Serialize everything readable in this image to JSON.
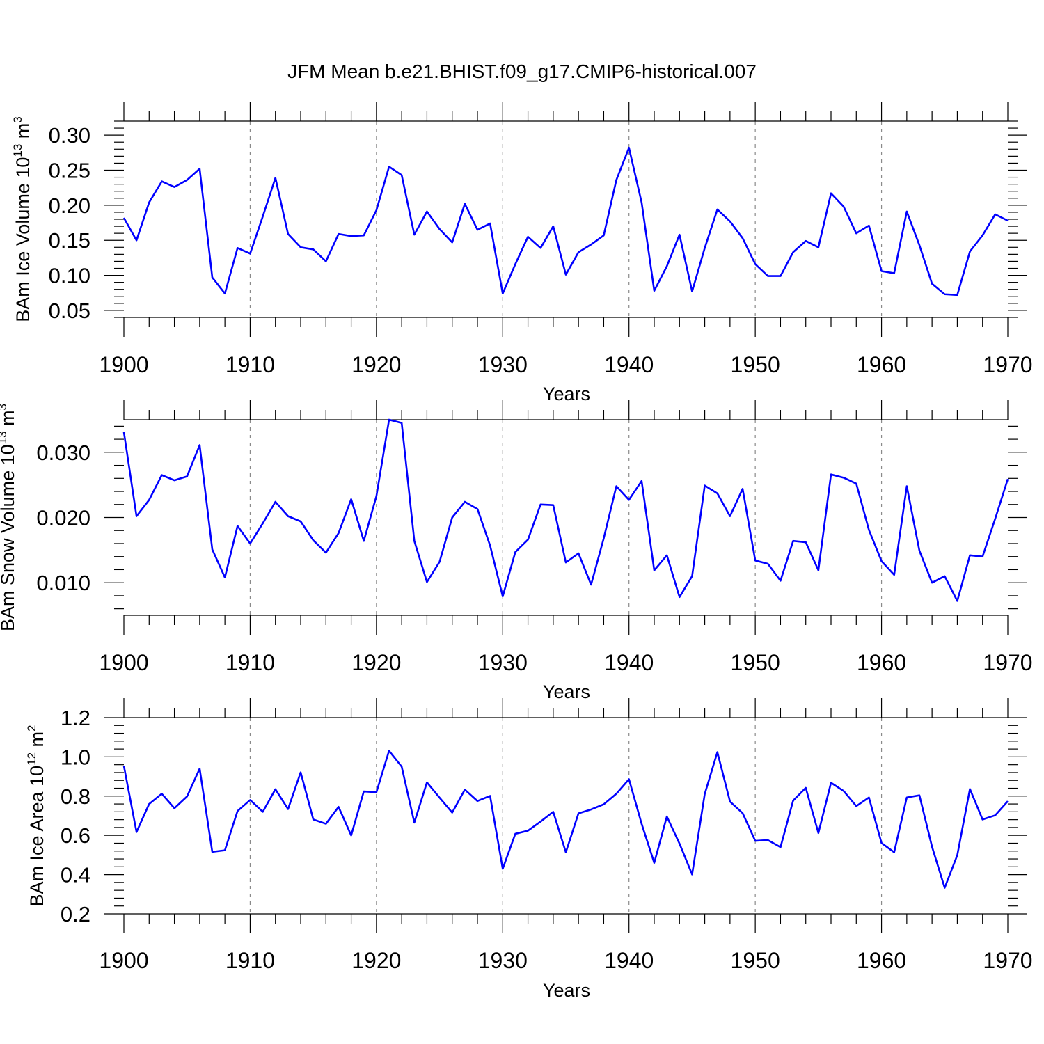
{
  "title": "JFM Mean b.e21.BHIST.f09_g17.CMIP6-historical.007",
  "line_color": "#0000ff",
  "chart_data": [
    {
      "type": "line",
      "ylabel": "BAm Ice Volume 10",
      "ylabel_exp": "13",
      "ylabel_unit": " m",
      "ylabel_unit_exp": "3",
      "xlabel": "Years",
      "xlim": [
        1900,
        1970
      ],
      "ylim": [
        0.04,
        0.32
      ],
      "x_ticks": [
        1900,
        1910,
        1920,
        1930,
        1940,
        1950,
        1960,
        1970
      ],
      "x_tick_labels": [
        "1900",
        "1910",
        "1920",
        "1930",
        "1940",
        "1950",
        "1960",
        "1970"
      ],
      "y_ticks": [
        0.05,
        0.1,
        0.15,
        0.2,
        0.25,
        0.3
      ],
      "y_tick_labels": [
        "0.05",
        "0.10",
        "0.15",
        "0.20",
        "0.25",
        "0.30"
      ],
      "y_minor_step": 0.01,
      "grid": "vertical dashed at decades",
      "x_start": 1900,
      "series": [
        {
          "values": [
            0.182,
            0.15,
            0.204,
            0.234,
            0.226,
            0.236,
            0.252,
            0.097,
            0.074,
            0.139,
            0.131,
            0.184,
            0.239,
            0.159,
            0.14,
            0.137,
            0.12,
            0.159,
            0.156,
            0.157,
            0.193,
            0.255,
            0.243,
            0.158,
            0.191,
            0.166,
            0.147,
            0.202,
            0.165,
            0.174,
            0.074,
            0.116,
            0.155,
            0.139,
            0.17,
            0.101,
            0.133,
            0.144,
            0.157,
            0.236,
            0.282,
            0.204,
            0.078,
            0.113,
            0.158,
            0.077,
            0.139,
            0.194,
            0.177,
            0.153,
            0.116,
            0.099,
            0.099,
            0.133,
            0.149,
            0.14,
            0.217,
            0.198,
            0.16,
            0.171,
            0.106,
            0.103,
            0.191,
            0.143,
            0.088,
            0.073,
            0.072,
            0.134,
            0.157,
            0.187,
            0.178
          ]
        }
      ]
    },
    {
      "type": "line",
      "ylabel": "BAm Snow Volume 10",
      "ylabel_exp": "13",
      "ylabel_unit": " m",
      "ylabel_unit_exp": "3",
      "xlabel": "Years",
      "xlim": [
        1900,
        1970
      ],
      "ylim": [
        0.005,
        0.035
      ],
      "x_ticks": [
        1900,
        1910,
        1920,
        1930,
        1940,
        1950,
        1960,
        1970
      ],
      "x_tick_labels": [
        "1900",
        "1910",
        "1920",
        "1930",
        "1940",
        "1950",
        "1960",
        "1970"
      ],
      "y_ticks": [
        0.01,
        0.02,
        0.03
      ],
      "y_tick_labels": [
        "0.010",
        "0.020",
        "0.030"
      ],
      "y_minor_step": 0.002,
      "grid": "vertical dashed at decades",
      "x_start": 1900,
      "series": [
        {
          "values": [
            0.0331,
            0.0202,
            0.0227,
            0.0265,
            0.0257,
            0.0263,
            0.0311,
            0.0151,
            0.0108,
            0.0187,
            0.016,
            0.0191,
            0.0224,
            0.0202,
            0.0194,
            0.0165,
            0.0146,
            0.0176,
            0.0228,
            0.0164,
            0.0233,
            0.035,
            0.0345,
            0.0164,
            0.0101,
            0.0132,
            0.02,
            0.0224,
            0.0213,
            0.0157,
            0.0079,
            0.0147,
            0.0166,
            0.022,
            0.0219,
            0.0131,
            0.0145,
            0.0097,
            0.0168,
            0.0248,
            0.0227,
            0.0256,
            0.0119,
            0.0142,
            0.0078,
            0.011,
            0.0249,
            0.0237,
            0.0202,
            0.0244,
            0.0134,
            0.0129,
            0.0103,
            0.0164,
            0.0162,
            0.0119,
            0.0266,
            0.0261,
            0.0252,
            0.0181,
            0.0133,
            0.0112,
            0.0248,
            0.0149,
            0.01,
            0.011,
            0.0072,
            0.0142,
            0.014,
            0.0198,
            0.0259
          ]
        }
      ]
    },
    {
      "type": "line",
      "ylabel": "BAm Ice Area 10",
      "ylabel_exp": "12",
      "ylabel_unit": " m",
      "ylabel_unit_exp": "2",
      "xlabel": "Years",
      "xlim": [
        1900,
        1970
      ],
      "ylim": [
        0.2,
        1.2
      ],
      "x_ticks": [
        1900,
        1910,
        1920,
        1930,
        1940,
        1950,
        1960,
        1970
      ],
      "x_tick_labels": [
        "1900",
        "1910",
        "1920",
        "1930",
        "1940",
        "1950",
        "1960",
        "1970"
      ],
      "y_ticks": [
        0.2,
        0.4,
        0.6,
        0.8,
        1.0,
        1.2
      ],
      "y_tick_labels": [
        "0.2",
        "0.4",
        "0.6",
        "0.8",
        "1.0",
        "1.2"
      ],
      "y_minor_step": 0.04,
      "grid": "vertical dashed at decades",
      "x_start": 1900,
      "series": [
        {
          "values": [
            0.954,
            0.617,
            0.76,
            0.812,
            0.738,
            0.798,
            0.94,
            0.516,
            0.524,
            0.724,
            0.78,
            0.72,
            0.835,
            0.734,
            0.921,
            0.681,
            0.659,
            0.745,
            0.6,
            0.824,
            0.82,
            1.031,
            0.95,
            0.665,
            0.87,
            0.792,
            0.716,
            0.833,
            0.775,
            0.801,
            0.43,
            0.608,
            0.624,
            0.67,
            0.72,
            0.514,
            0.712,
            0.732,
            0.758,
            0.812,
            0.886,
            0.659,
            0.46,
            0.696,
            0.558,
            0.401,
            0.811,
            1.024,
            0.772,
            0.713,
            0.572,
            0.576,
            0.54,
            0.777,
            0.842,
            0.612,
            0.868,
            0.826,
            0.749,
            0.793,
            0.561,
            0.514,
            0.793,
            0.804,
            0.542,
            0.333,
            0.499,
            0.836,
            0.681,
            0.702,
            0.774
          ]
        }
      ]
    }
  ]
}
